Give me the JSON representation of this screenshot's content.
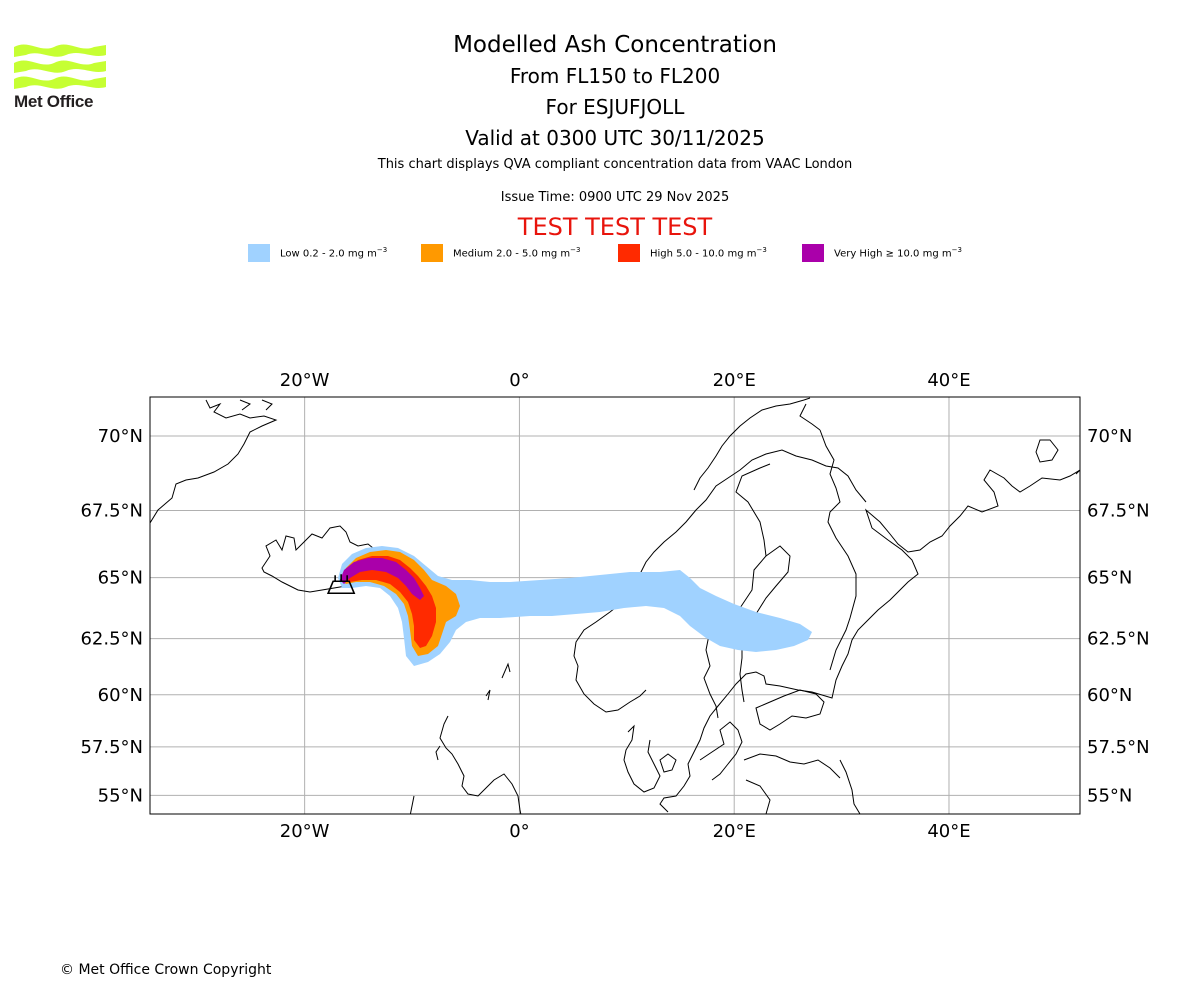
{
  "logo": {
    "name": "Met Office",
    "text": "Met Office"
  },
  "header": {
    "title": "Modelled Ash Concentration",
    "levels": "From FL150 to FL200",
    "volcano": "For ESJUFJOLL",
    "valid": "Valid at 0300 UTC 30/11/2025",
    "compliance": "This chart displays QVA compliant concentration data from VAAC London",
    "issue_time": "Issue Time: 0900 UTC 29 Nov 2025",
    "test_banner": "TEST TEST TEST"
  },
  "legend": [
    {
      "label": "Low 0.2 - 2.0 mg m",
      "unit_exp": "−3",
      "color": "#a0d2ff"
    },
    {
      "label": "Medium 2.0 - 5.0 mg m",
      "unit_exp": "−3",
      "color": "#ff9900"
    },
    {
      "label": "High 5.0 - 10.0 mg m",
      "unit_exp": "−3",
      "color": "#ff2a00"
    },
    {
      "label": "Very High  ≥  10.0 mg m",
      "unit_exp": "−3",
      "color": "#aa00aa"
    }
  ],
  "map": {
    "lon_labels": [
      "20°W",
      "0°",
      "20°E",
      "40°E"
    ],
    "lat_labels": [
      "70°N",
      "67.5°N",
      "65°N",
      "62.5°N",
      "60°N",
      "57.5°N",
      "55°N"
    ],
    "lon_values": [
      -20,
      0,
      20,
      40
    ],
    "lat_values": [
      70,
      67.5,
      65,
      62.5,
      60,
      57.5,
      55
    ],
    "extent": {
      "lon_min": -34.4,
      "lon_max": 52.2,
      "lat_min": 54.0,
      "lat_max": 71.2
    },
    "volcano_marker": {
      "lon": -16.6,
      "lat": 64.3
    },
    "gridline_color": "#b0b0b0"
  },
  "footer": {
    "copyright": "© Met Office Crown Copyright"
  }
}
